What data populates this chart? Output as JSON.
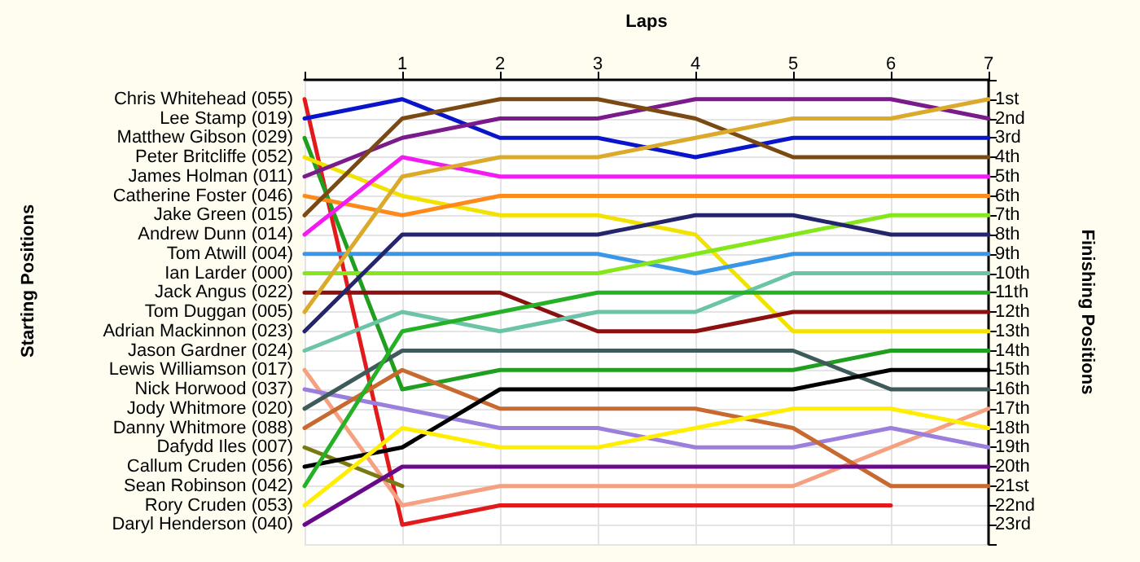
{
  "chart_data": {
    "type": "line",
    "xlabel": "Laps",
    "ylabel": "Finishing Positions",
    "annotations": [
      "Starting Positions"
    ],
    "x": [
      0,
      1,
      2,
      3,
      4,
      5,
      6,
      7
    ],
    "xlim": [
      0,
      7
    ],
    "xticks": [
      {
        "value": 0,
        "label": null
      },
      1,
      2,
      3,
      4,
      5,
      6,
      7
    ],
    "ylim": [
      24,
      0
    ],
    "yticks": [
      {
        "value": 0,
        "label": null
      },
      {
        "value": 1,
        "label": "1st"
      },
      {
        "value": 2,
        "label": "2nd"
      },
      {
        "value": 3,
        "label": "3rd"
      },
      {
        "value": 4,
        "label": "4th"
      },
      {
        "value": 5,
        "label": "5th"
      },
      {
        "value": 6,
        "label": "6th"
      },
      {
        "value": 7,
        "label": "7th"
      },
      {
        "value": 8,
        "label": "8th"
      },
      {
        "value": 9,
        "label": "9th"
      },
      {
        "value": 10,
        "label": "10th"
      },
      {
        "value": 11,
        "label": "11th"
      },
      {
        "value": 12,
        "label": "12th"
      },
      {
        "value": 13,
        "label": "13th"
      },
      {
        "value": 14,
        "label": "14th"
      },
      {
        "value": 15,
        "label": "15th"
      },
      {
        "value": 16,
        "label": "16th"
      },
      {
        "value": 17,
        "label": "17th"
      },
      {
        "value": 18,
        "label": "18th"
      },
      {
        "value": 19,
        "label": "19th"
      },
      {
        "value": 20,
        "label": "20th"
      },
      {
        "value": 21,
        "label": "21st"
      },
      {
        "value": 22,
        "label": "22nd"
      },
      {
        "value": 23,
        "label": "23rd"
      },
      {
        "value": 24,
        "label": null
      }
    ],
    "grid": true,
    "legend": "left",
    "series": [
      {
        "name": "Chris Whitehead (055)",
        "color": "#e31a1c",
        "values": [
          1,
          23,
          22,
          22,
          22,
          22,
          22,
          null
        ]
      },
      {
        "name": "Lee Stamp (019)",
        "color": "#0a14c8",
        "values": [
          2,
          1,
          3,
          3,
          4,
          3,
          3,
          3
        ]
      },
      {
        "name": "Matthew Gibson (029)",
        "color": "#1f9e1f",
        "values": [
          3,
          16,
          15,
          15,
          15,
          15,
          14,
          14
        ]
      },
      {
        "name": "Peter Britcliffe (052)",
        "color": "#f2e200",
        "values": [
          4,
          6,
          7,
          7,
          8,
          13,
          13,
          13
        ]
      },
      {
        "name": "James Holman (011)",
        "color": "#7b1a8a",
        "values": [
          5,
          3,
          2,
          2,
          1,
          1,
          1,
          2
        ]
      },
      {
        "name": "Catherine Foster (046)",
        "color": "#ff8a1c",
        "values": [
          6,
          7,
          6,
          6,
          6,
          6,
          6,
          6
        ]
      },
      {
        "name": "Jake Green (015)",
        "color": "#7b4a12",
        "values": [
          7,
          2,
          1,
          1,
          2,
          4,
          4,
          4
        ]
      },
      {
        "name": "Andrew Dunn (014)",
        "color": "#f21cf2",
        "values": [
          8,
          4,
          5,
          5,
          5,
          5,
          5,
          5
        ]
      },
      {
        "name": "Tom Atwill (004)",
        "color": "#3a96e6",
        "values": [
          9,
          9,
          9,
          9,
          10,
          9,
          9,
          9
        ]
      },
      {
        "name": "Ian Larder (000)",
        "color": "#86e61c",
        "values": [
          10,
          10,
          10,
          10,
          9,
          8,
          7,
          7
        ]
      },
      {
        "name": "Jack Angus (022)",
        "color": "#8b1010",
        "values": [
          11,
          11,
          11,
          13,
          13,
          12,
          12,
          12
        ]
      },
      {
        "name": "Tom Duggan (005)",
        "color": "#dcaa2a",
        "values": [
          12,
          5,
          4,
          4,
          3,
          2,
          2,
          1
        ]
      },
      {
        "name": "Adrian Mackinnon (023)",
        "color": "#25256e",
        "values": [
          13,
          8,
          8,
          8,
          7,
          7,
          8,
          8
        ]
      },
      {
        "name": "Jason Gardner (024)",
        "color": "#6cc4a8",
        "values": [
          14,
          12,
          13,
          12,
          12,
          10,
          10,
          10
        ]
      },
      {
        "name": "Lewis Williamson (017)",
        "color": "#f5a080",
        "values": [
          15,
          22,
          21,
          21,
          21,
          21,
          19,
          17
        ]
      },
      {
        "name": "Nick Horwood (037)",
        "color": "#9b7fdc",
        "values": [
          16,
          17,
          18,
          18,
          19,
          19,
          18,
          19
        ]
      },
      {
        "name": "Jody Whitmore (020)",
        "color": "#3f5a5a",
        "values": [
          17,
          14,
          14,
          14,
          14,
          14,
          16,
          16
        ]
      },
      {
        "name": "Danny Whitmore (088)",
        "color": "#c86a30",
        "values": [
          18,
          15,
          17,
          17,
          17,
          18,
          21,
          21
        ]
      },
      {
        "name": "Dafydd Iles (007)",
        "color": "#7a7a14",
        "values": [
          19,
          21,
          null,
          null,
          null,
          null,
          null,
          null
        ]
      },
      {
        "name": "Callum Cruden (056)",
        "color": "#000000",
        "values": [
          20,
          19,
          16,
          16,
          16,
          16,
          15,
          15
        ]
      },
      {
        "name": "Sean Robinson (042)",
        "color": "#26b026",
        "values": [
          21,
          13,
          12,
          11,
          11,
          11,
          11,
          11
        ]
      },
      {
        "name": "Rory Cruden (053)",
        "color": "#ffee00",
        "values": [
          22,
          18,
          19,
          19,
          18,
          17,
          17,
          18
        ]
      },
      {
        "name": "Daryl Henderson (040)",
        "color": "#6a0a8a",
        "values": [
          23,
          20,
          20,
          20,
          20,
          20,
          20,
          20
        ]
      }
    ]
  }
}
